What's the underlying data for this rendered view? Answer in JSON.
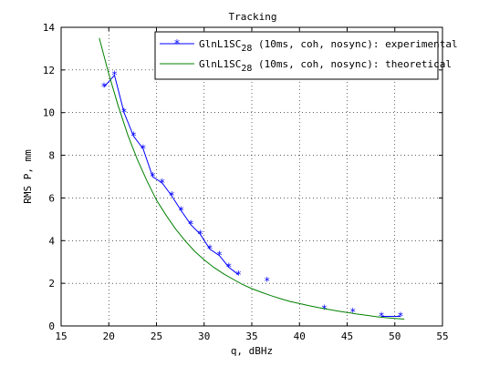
{
  "chart_data": {
    "type": "line",
    "title": "Tracking",
    "xlabel": "q, dBHz",
    "ylabel": "RMS P, mm",
    "xlim": [
      15,
      55
    ],
    "ylim": [
      0,
      14
    ],
    "xticks": [
      15,
      20,
      25,
      30,
      35,
      40,
      45,
      50,
      55
    ],
    "yticks": [
      0,
      2,
      4,
      6,
      8,
      10,
      12,
      14
    ],
    "grid": true,
    "legend_position": "top-right",
    "series": [
      {
        "name_main": "GlnL1SC",
        "name_sub": "28",
        "name_rest": " (10ms, coh, nosync): experimental",
        "color": "#0000ff",
        "marker": "asterisk",
        "points": [
          [
            19.5,
            11.2
          ],
          [
            20.6,
            11.75
          ],
          [
            21.6,
            10.0
          ],
          [
            22.6,
            8.9
          ],
          [
            23.6,
            8.3
          ],
          [
            24.6,
            7.0
          ],
          [
            25.6,
            6.7
          ],
          [
            26.6,
            6.1
          ],
          [
            27.6,
            5.4
          ],
          [
            28.6,
            4.75
          ],
          [
            29.6,
            4.3
          ],
          [
            30.6,
            3.6
          ],
          [
            31.6,
            3.3
          ],
          [
            32.6,
            2.75
          ],
          [
            33.6,
            2.4
          ],
          [
            36.6,
            2.1
          ],
          [
            42.6,
            0.8
          ],
          [
            45.6,
            0.65
          ],
          [
            48.6,
            0.45
          ],
          [
            50.6,
            0.45
          ]
        ],
        "line_until_index": 14,
        "extra_segments": [
          [
            18,
            19
          ]
        ]
      },
      {
        "name_main": "GlnL1SC",
        "name_sub": "28",
        "name_rest": " (10ms, coh, nosync): theoretical",
        "color": "#008000",
        "marker": "none",
        "points": [
          [
            19.0,
            13.5
          ],
          [
            20.0,
            11.8
          ],
          [
            21.0,
            10.3
          ],
          [
            22.0,
            8.95
          ],
          [
            23.0,
            7.8
          ],
          [
            24.0,
            6.8
          ],
          [
            25.0,
            5.9
          ],
          [
            26.0,
            5.2
          ],
          [
            27.0,
            4.55
          ],
          [
            28.0,
            4.0
          ],
          [
            29.0,
            3.5
          ],
          [
            30.0,
            3.1
          ],
          [
            31.0,
            2.75
          ],
          [
            32.0,
            2.45
          ],
          [
            33.0,
            2.2
          ],
          [
            34.0,
            1.95
          ],
          [
            35.0,
            1.75
          ],
          [
            36.0,
            1.58
          ],
          [
            37.0,
            1.42
          ],
          [
            38.0,
            1.28
          ],
          [
            39.0,
            1.15
          ],
          [
            40.0,
            1.05
          ],
          [
            41.0,
            0.95
          ],
          [
            42.0,
            0.86
          ],
          [
            43.0,
            0.78
          ],
          [
            44.0,
            0.7
          ],
          [
            45.0,
            0.63
          ],
          [
            46.0,
            0.56
          ],
          [
            47.0,
            0.5
          ],
          [
            48.0,
            0.44
          ],
          [
            49.0,
            0.39
          ],
          [
            50.0,
            0.35
          ],
          [
            51.0,
            0.32
          ]
        ]
      }
    ]
  }
}
